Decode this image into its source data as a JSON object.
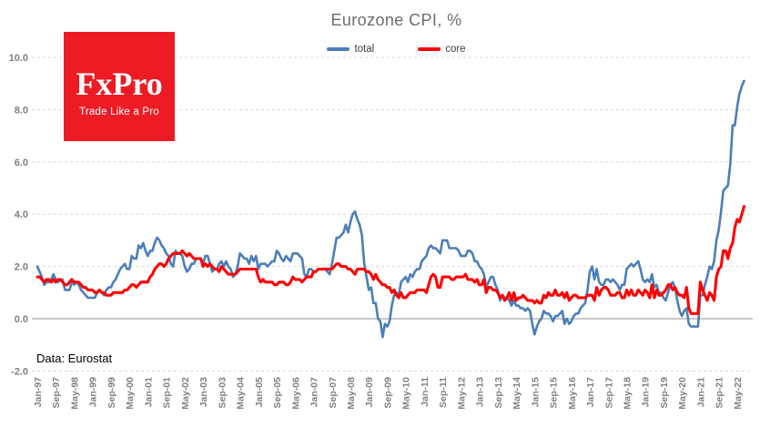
{
  "header": {
    "title": "Eurozone CPI, %"
  },
  "legend": [
    {
      "label": "total",
      "color": "#4a7eba"
    },
    {
      "label": "core",
      "color": "#fe0000"
    }
  ],
  "logo": {
    "brand": "FxPro",
    "tagline": "Trade Like a Pro",
    "bg_color": "#ed1c24",
    "text_color": "#ffffff"
  },
  "footer": {
    "source": "Data: Eurostat"
  },
  "chart_data": {
    "type": "line",
    "title": "Eurozone CPI, %",
    "xlabel": "",
    "ylabel": "",
    "x_unit": "month",
    "x_start": "Jan-1997",
    "x_end": "Aug-2022",
    "x_frequency": "monthly",
    "x_tick_every_months": 8,
    "x_tick_labels": [
      "Jan-97",
      "Sep-97",
      "May-98",
      "Jan-99",
      "Sep-99",
      "May-00",
      "Jan-01",
      "Sep-01",
      "May-02",
      "Jan-03",
      "Sep-03",
      "May-04",
      "Jan-05",
      "Sep-05",
      "May-06",
      "Jan-07",
      "Sep-07",
      "May-08",
      "Jan-09",
      "Sep-09",
      "May-10",
      "Jan-11",
      "Sep-11",
      "May-12",
      "Jan-13",
      "Sep-13",
      "May-14",
      "Jan-15",
      "Sep-15",
      "May-16",
      "Jan-17",
      "Sep-17",
      "May-18",
      "Jan-19",
      "Sep-19",
      "May-20",
      "Jan-21",
      "Sep-21",
      "May-22"
    ],
    "y_ticks": [
      "10.0",
      "8.0",
      "6.0",
      "4.0",
      "2.0",
      "0.0",
      "-2.0"
    ],
    "ylim": [
      -2,
      10
    ],
    "grid": "horizontal-dashed",
    "zero_line": "solid",
    "legend_position": "top-center",
    "grid_color": "#d9d9d9",
    "zero_line_color": "#a6a6a6",
    "axis_label_color": "#7f7f7f",
    "series": [
      {
        "name": "total",
        "color": "#4a7eba",
        "stroke_width": 2.6,
        "values": [
          2.0,
          1.8,
          1.6,
          1.3,
          1.4,
          1.4,
          1.5,
          1.7,
          1.5,
          1.4,
          1.5,
          1.5,
          1.1,
          1.1,
          1.1,
          1.4,
          1.3,
          1.4,
          1.3,
          1.1,
          1.0,
          0.9,
          0.8,
          0.8,
          0.8,
          0.8,
          1.0,
          1.1,
          1.0,
          0.9,
          1.1,
          1.2,
          1.2,
          1.4,
          1.5,
          1.7,
          1.9,
          2.0,
          2.1,
          1.9,
          1.9,
          2.4,
          2.3,
          2.3,
          2.8,
          2.7,
          2.9,
          2.6,
          2.4,
          2.6,
          2.6,
          2.9,
          3.1,
          3.0,
          2.8,
          2.7,
          2.5,
          2.4,
          2.1,
          2.0,
          2.6,
          2.5,
          2.5,
          2.4,
          2.0,
          1.8,
          1.9,
          2.1,
          2.1,
          2.3,
          2.3,
          2.3,
          2.1,
          2.4,
          2.4,
          2.1,
          1.8,
          1.9,
          1.9,
          2.1,
          2.2,
          2.0,
          2.2,
          2.0,
          1.9,
          1.6,
          1.7,
          2.0,
          2.5,
          2.4,
          2.3,
          2.3,
          2.1,
          2.4,
          2.2,
          2.4,
          1.9,
          2.1,
          2.1,
          2.1,
          2.0,
          2.1,
          2.2,
          2.2,
          2.6,
          2.5,
          2.3,
          2.2,
          2.4,
          2.3,
          2.2,
          2.5,
          2.5,
          2.5,
          2.4,
          2.3,
          1.7,
          1.6,
          1.9,
          1.9,
          1.8,
          1.8,
          1.9,
          1.9,
          1.9,
          1.9,
          1.8,
          1.7,
          2.1,
          2.6,
          3.1,
          3.1,
          3.2,
          3.3,
          3.6,
          3.3,
          3.7,
          4.0,
          4.1,
          3.8,
          3.6,
          3.2,
          2.1,
          1.6,
          1.1,
          1.2,
          0.6,
          0.6,
          0.0,
          -0.1,
          -0.7,
          -0.2,
          -0.3,
          -0.1,
          0.5,
          0.9,
          1.0,
          0.9,
          1.4,
          1.5,
          1.6,
          1.4,
          1.7,
          1.6,
          1.8,
          1.9,
          1.9,
          2.2,
          2.3,
          2.4,
          2.7,
          2.8,
          2.7,
          2.7,
          2.6,
          2.5,
          3.0,
          3.0,
          3.0,
          2.7,
          2.7,
          2.7,
          2.7,
          2.6,
          2.4,
          2.4,
          2.4,
          2.6,
          2.6,
          2.5,
          2.2,
          2.2,
          2.0,
          1.9,
          1.7,
          1.2,
          1.4,
          1.6,
          1.6,
          1.3,
          1.1,
          0.7,
          0.9,
          0.8,
          0.8,
          0.7,
          0.5,
          0.7,
          0.5,
          0.5,
          0.4,
          0.4,
          0.3,
          0.4,
          0.3,
          -0.2,
          -0.6,
          -0.3,
          -0.1,
          0.0,
          0.3,
          0.2,
          0.2,
          0.1,
          -0.1,
          0.1,
          0.1,
          0.2,
          0.3,
          -0.2,
          0.0,
          -0.2,
          -0.1,
          0.1,
          0.2,
          0.2,
          0.4,
          0.5,
          0.6,
          1.1,
          1.8,
          2.0,
          1.5,
          1.9,
          1.4,
          1.3,
          1.3,
          1.5,
          1.5,
          1.4,
          1.5,
          1.4,
          1.3,
          1.1,
          1.3,
          1.3,
          1.9,
          2.0,
          2.1,
          2.0,
          2.1,
          2.2,
          1.9,
          1.5,
          1.4,
          1.5,
          1.4,
          1.7,
          1.2,
          1.3,
          1.0,
          1.0,
          0.8,
          0.7,
          1.0,
          1.3,
          1.4,
          1.2,
          0.7,
          0.3,
          0.1,
          0.3,
          0.4,
          -0.2,
          -0.3,
          -0.3,
          -0.3,
          -0.3,
          0.9,
          0.9,
          1.3,
          1.6,
          2.0,
          1.9,
          2.2,
          3.0,
          3.4,
          4.1,
          4.9,
          5.0,
          5.1,
          5.9,
          7.4,
          7.4,
          8.1,
          8.6,
          8.9,
          9.1
        ]
      },
      {
        "name": "core",
        "color": "#fe0000",
        "stroke_width": 3.1,
        "values": [
          1.6,
          1.6,
          1.5,
          1.4,
          1.5,
          1.5,
          1.4,
          1.5,
          1.4,
          1.5,
          1.5,
          1.4,
          1.3,
          1.3,
          1.4,
          1.5,
          1.4,
          1.4,
          1.4,
          1.3,
          1.2,
          1.2,
          1.1,
          1.1,
          1.1,
          1.0,
          1.0,
          1.1,
          1.0,
          1.0,
          0.9,
          0.9,
          0.9,
          1.0,
          1.0,
          1.0,
          1.0,
          1.0,
          1.1,
          1.1,
          1.2,
          1.3,
          1.3,
          1.2,
          1.3,
          1.4,
          1.4,
          1.4,
          1.4,
          1.6,
          1.7,
          1.9,
          2.0,
          2.1,
          2.1,
          2.0,
          2.1,
          2.3,
          2.4,
          2.5,
          2.5,
          2.5,
          2.5,
          2.6,
          2.5,
          2.4,
          2.5,
          2.4,
          2.3,
          2.3,
          2.3,
          2.3,
          2.0,
          2.1,
          2.0,
          2.1,
          2.0,
          1.9,
          1.9,
          1.8,
          2.0,
          1.9,
          1.8,
          1.7,
          1.7,
          1.7,
          1.7,
          1.8,
          1.9,
          1.9,
          1.9,
          1.9,
          1.9,
          1.9,
          1.9,
          1.9,
          1.6,
          1.4,
          1.5,
          1.4,
          1.4,
          1.4,
          1.4,
          1.3,
          1.3,
          1.4,
          1.4,
          1.4,
          1.3,
          1.3,
          1.4,
          1.6,
          1.5,
          1.5,
          1.5,
          1.4,
          1.5,
          1.6,
          1.6,
          1.6,
          1.8,
          1.8,
          1.9,
          1.9,
          1.9,
          1.9,
          1.9,
          1.9,
          1.9,
          2.0,
          2.1,
          2.1,
          2.0,
          2.0,
          2.0,
          1.9,
          1.9,
          1.8,
          1.7,
          1.9,
          1.9,
          1.9,
          1.9,
          1.8,
          1.8,
          1.7,
          1.5,
          1.7,
          1.5,
          1.4,
          1.3,
          1.3,
          1.2,
          1.2,
          1.0,
          1.1,
          0.9,
          0.8,
          1.0,
          0.8,
          0.8,
          0.9,
          1.0,
          1.0,
          1.0,
          1.1,
          1.1,
          1.1,
          1.1,
          1.0,
          1.3,
          1.6,
          1.7,
          1.6,
          1.2,
          1.2,
          1.6,
          1.6,
          1.6,
          1.6,
          1.5,
          1.5,
          1.6,
          1.6,
          1.6,
          1.6,
          1.7,
          1.5,
          1.5,
          1.5,
          1.4,
          1.5,
          1.3,
          1.3,
          1.5,
          1.0,
          1.2,
          1.2,
          1.1,
          1.1,
          1.0,
          0.8,
          0.9,
          0.7,
          0.8,
          1.0,
          0.7,
          1.0,
          0.7,
          0.8,
          0.8,
          0.9,
          0.8,
          0.7,
          0.7,
          0.7,
          0.6,
          0.7,
          0.6,
          0.6,
          0.9,
          0.8,
          1.0,
          0.9,
          0.9,
          1.1,
          0.9,
          0.9,
          1.0,
          0.8,
          1.0,
          0.7,
          0.8,
          0.9,
          0.9,
          0.8,
          0.8,
          0.8,
          0.8,
          0.9,
          0.9,
          0.9,
          0.7,
          1.2,
          0.9,
          1.1,
          1.2,
          1.2,
          1.1,
          0.9,
          0.9,
          0.9,
          1.0,
          1.0,
          0.8,
          0.8,
          1.1,
          0.9,
          1.1,
          0.9,
          0.9,
          1.1,
          1.0,
          0.9,
          1.1,
          1.0,
          0.8,
          1.3,
          0.8,
          1.1,
          0.9,
          0.9,
          1.0,
          1.1,
          1.3,
          1.3,
          1.1,
          1.2,
          1.0,
          0.9,
          0.9,
          0.8,
          1.2,
          0.4,
          0.2,
          0.2,
          0.2,
          0.2,
          1.4,
          1.1,
          0.9,
          0.7,
          1.0,
          0.9,
          0.7,
          1.6,
          1.9,
          2.0,
          2.6,
          2.6,
          2.3,
          2.7,
          2.9,
          3.5,
          3.8,
          3.7,
          4.0,
          4.3
        ]
      }
    ]
  }
}
